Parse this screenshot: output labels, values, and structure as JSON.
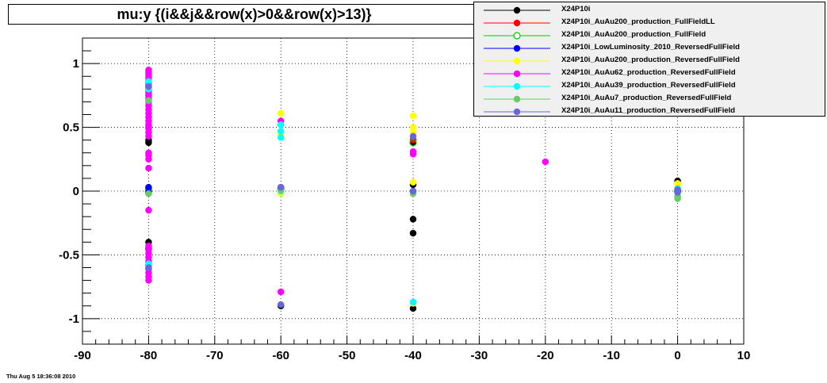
{
  "title": "mu:y  {(i&&j&&row(x)>0&&row(x)>13)}",
  "timestamp": "Thu Aug  5 18:36:08 2010",
  "chart_data": {
    "type": "scatter",
    "title": "mu:y  {(i&&j&&row(x)>0&&row(x)>13)}",
    "xlabel": "",
    "ylabel": "",
    "xlim": [
      -90,
      10
    ],
    "ylim": [
      -1.2,
      1.2
    ],
    "x_ticks": [
      -90,
      -80,
      -70,
      -60,
      -50,
      -40,
      -30,
      -20,
      -10,
      0,
      10
    ],
    "y_ticks": [
      -1,
      -0.5,
      0,
      0.5,
      1
    ],
    "grid": true,
    "legend_position": "top-right",
    "series": [
      {
        "name": "X24P10i",
        "color": "#000000",
        "marker": "filled-circle",
        "points": [
          [
            -80,
            0.4
          ],
          [
            -80,
            0.38
          ],
          [
            -80,
            0.02
          ],
          [
            -80,
            -0.4
          ],
          [
            -80,
            -0.45
          ],
          [
            -60,
            0.02
          ],
          [
            -60,
            -0.9
          ],
          [
            -40,
            -0.33
          ],
          [
            -40,
            -0.92
          ],
          [
            -40,
            -0.22
          ],
          [
            -40,
            0.05
          ],
          [
            -40,
            0.38
          ],
          [
            0,
            0.08
          ],
          [
            0,
            0.0
          ]
        ]
      },
      {
        "name": "X24P10i_AuAu200_production_FullFieldLL",
        "color": "#ff0000",
        "marker": "filled-circle",
        "points": [
          [
            -80,
            0.5
          ],
          [
            -60,
            0.03
          ],
          [
            -40,
            0.4
          ],
          [
            0,
            0.02
          ]
        ]
      },
      {
        "name": "X24P10i_AuAu200_production_FullField",
        "color": "#00cc00",
        "marker": "open-circle",
        "points": [
          [
            -80,
            0.0
          ],
          [
            -60,
            0.02
          ],
          [
            -40,
            0.38
          ],
          [
            0,
            0.0
          ]
        ]
      },
      {
        "name": "X24P10i_LowLuminosity_2010_ReversedFullField",
        "color": "#0000ff",
        "marker": "filled-circle",
        "points": [
          [
            -80,
            0.03
          ],
          [
            -80,
            -0.01
          ],
          [
            -60,
            0.01
          ],
          [
            -40,
            0.0
          ],
          [
            0,
            0.0
          ]
        ]
      },
      {
        "name": "X24P10i_AuAu200_production_ReversedFullField",
        "color": "#ffff00",
        "marker": "filled-circle",
        "points": [
          [
            -80,
            0.75
          ],
          [
            -80,
            0.72
          ],
          [
            -60,
            0.61
          ],
          [
            -60,
            0.45
          ],
          [
            -60,
            -0.02
          ],
          [
            -40,
            0.59
          ],
          [
            -40,
            0.5
          ],
          [
            -40,
            0.46
          ],
          [
            -40,
            0.07
          ],
          [
            -40,
            -0.88
          ],
          [
            0,
            0.06
          ],
          [
            0,
            0.05
          ]
        ]
      },
      {
        "name": "X24P10i_AuAu62_production_ReversedFullField",
        "color": "#ff00ff",
        "marker": "filled-circle",
        "points": [
          [
            -80,
            0.95
          ],
          [
            -80,
            0.93
          ],
          [
            -80,
            0.91
          ],
          [
            -80,
            0.89
          ],
          [
            -80,
            0.87
          ],
          [
            -80,
            0.85
          ],
          [
            -80,
            0.83
          ],
          [
            -80,
            0.81
          ],
          [
            -80,
            0.79
          ],
          [
            -80,
            0.77
          ],
          [
            -80,
            0.75
          ],
          [
            -80,
            0.73
          ],
          [
            -80,
            0.7
          ],
          [
            -80,
            0.67
          ],
          [
            -80,
            0.64
          ],
          [
            -80,
            0.61
          ],
          [
            -80,
            0.58
          ],
          [
            -80,
            0.55
          ],
          [
            -80,
            0.52
          ],
          [
            -80,
            0.49
          ],
          [
            -80,
            0.46
          ],
          [
            -80,
            0.43
          ],
          [
            -80,
            0.3
          ],
          [
            -80,
            0.28
          ],
          [
            -80,
            0.25
          ],
          [
            -80,
            0.18
          ],
          [
            -80,
            -0.15
          ],
          [
            -80,
            -0.43
          ],
          [
            -80,
            -0.46
          ],
          [
            -80,
            -0.49
          ],
          [
            -80,
            -0.52
          ],
          [
            -80,
            -0.55
          ],
          [
            -80,
            -0.58
          ],
          [
            -80,
            -0.61
          ],
          [
            -80,
            -0.64
          ],
          [
            -80,
            -0.67
          ],
          [
            -80,
            -0.7
          ],
          [
            -60,
            0.55
          ],
          [
            -60,
            0.03
          ],
          [
            -60,
            -0.79
          ],
          [
            -40,
            0.31
          ],
          [
            -40,
            0.29
          ],
          [
            -20,
            0.23
          ]
        ]
      },
      {
        "name": "X24P10i_AuAu39_production_ReversedFullField",
        "color": "#00ffff",
        "marker": "filled-circle",
        "points": [
          [
            -80,
            0.86
          ],
          [
            -80,
            0.8
          ],
          [
            -80,
            -0.57
          ],
          [
            -60,
            0.52
          ],
          [
            -60,
            0.47
          ],
          [
            -60,
            0.42
          ],
          [
            -60,
            0.0
          ],
          [
            -40,
            -0.87
          ],
          [
            0,
            0.02
          ]
        ]
      },
      {
        "name": "X24P10i_AuAu7_production_ReversedFullField",
        "color": "#66cc66",
        "marker": "filled-circle",
        "points": [
          [
            -80,
            0.71
          ],
          [
            -80,
            -0.02
          ],
          [
            -60,
            0.01
          ],
          [
            -40,
            -0.02
          ],
          [
            0,
            -0.04
          ],
          [
            0,
            -0.06
          ]
        ]
      },
      {
        "name": "X24P10i_AuAu11_production_ReversedFullField",
        "color": "#6666dd",
        "marker": "filled-circle",
        "points": [
          [
            -80,
            0.82
          ],
          [
            -80,
            -0.6
          ],
          [
            -60,
            0.03
          ],
          [
            -60,
            -0.89
          ],
          [
            -40,
            0.43
          ],
          [
            -40,
            0.0
          ],
          [
            0,
            0.01
          ],
          [
            0,
            -0.01
          ]
        ]
      }
    ]
  }
}
